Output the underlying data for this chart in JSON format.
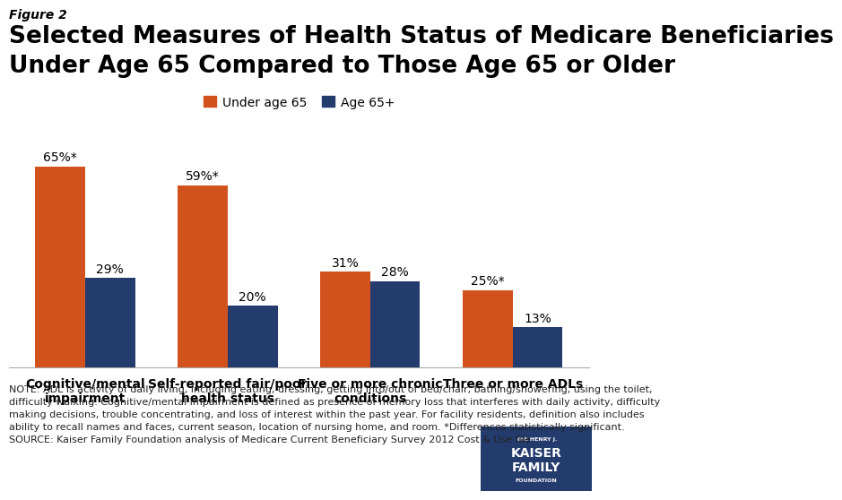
{
  "figure_label": "Figure 2",
  "title_line1": "Selected Measures of Health Status of Medicare Beneficiaries",
  "title_line2": "Under Age 65 Compared to Those Age 65 or Older",
  "categories": [
    "Cognitive/mental\nimpairment",
    "Self-reported fair/poor\nhealth status",
    "Five or more chronic\nconditions",
    "Three or more ADLs"
  ],
  "under65_values": [
    65,
    59,
    31,
    25
  ],
  "age65plus_values": [
    29,
    20,
    28,
    13
  ],
  "under65_labels": [
    "65%*",
    "59%*",
    "31%",
    "25%*"
  ],
  "age65plus_labels": [
    "29%",
    "20%",
    "28%",
    "13%"
  ],
  "under65_color": "#D2521E",
  "age65plus_color": "#243B6E",
  "legend_labels": [
    "Under age 65",
    "Age 65+"
  ],
  "ylim": [
    0,
    75
  ],
  "bar_width": 0.35,
  "note_text": "NOTE: ADL is activity of daily living, including eating, dressing, getting into/out of bed/chair, bathing/showering, using the toilet,\ndifficulty walking. Cognitive/mental impairment is defined as presence of memory loss that interferes with daily activity, difficulty\nmaking decisions, trouble concentrating, and loss of interest within the past year. For facility residents, definition also includes\nability to recall names and faces, current season, location of nursing home, and room. *Differences statistically significant.\nSOURCE: Kaiser Family Foundation analysis of Medicare Current Beneficiary Survey 2012 Cost & Use file.",
  "background_color": "#ffffff",
  "label_fontsize": 10,
  "title_fontsize": 19,
  "figure_label_fontsize": 10,
  "note_fontsize": 8,
  "axis_label_fontsize": 10,
  "logo_color": "#243B6E"
}
